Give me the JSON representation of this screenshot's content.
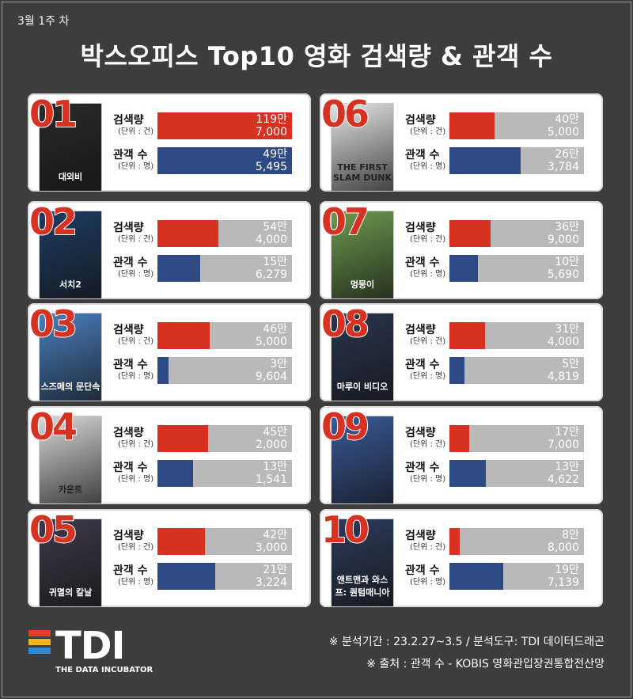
{
  "header": {
    "week": "3월 1주 차",
    "title": "박스오피스 Top10 영화 검색량 & 관객 수"
  },
  "labels": {
    "search_main": "검색량",
    "search_unit": "(단위 : 건)",
    "aud_main": "관객 수",
    "aud_unit": "(단위 : 명)"
  },
  "colors": {
    "search": "#d53222",
    "audience": "#2e4a84",
    "track": "#b9b9b9",
    "background": "#3d3d3d"
  },
  "chart_data": {
    "type": "bar",
    "categories": [
      "01",
      "02",
      "03",
      "04",
      "05",
      "06",
      "07",
      "08",
      "09",
      "10"
    ],
    "series": [
      {
        "name": "검색량",
        "unit": "건",
        "values": [
          1197000,
          544000,
          465000,
          452000,
          423000,
          405000,
          369000,
          314000,
          177000,
          88000
        ],
        "display": [
          [
            "119만",
            "7,000"
          ],
          [
            "54만",
            "4,000"
          ],
          [
            "46만",
            "5,000"
          ],
          [
            "45만",
            "2,000"
          ],
          [
            "42만",
            "3,000"
          ],
          [
            "40만",
            "5,000"
          ],
          [
            "36만",
            "9,000"
          ],
          [
            "31만",
            "4,000"
          ],
          [
            "17만",
            "7,000"
          ],
          [
            "8만",
            "8,000"
          ]
        ]
      },
      {
        "name": "관객 수",
        "unit": "명",
        "values": [
          495495,
          156279,
          39604,
          131541,
          213224,
          263784,
          105690,
          54819,
          134622,
          197139
        ],
        "display": [
          [
            "49만",
            "5,495"
          ],
          [
            "15만",
            "6,279"
          ],
          [
            "3만",
            "9,604"
          ],
          [
            "13만",
            "1,541"
          ],
          [
            "21만",
            "3,224"
          ],
          [
            "26만",
            "3,784"
          ],
          [
            "10만",
            "5,690"
          ],
          [
            "5만",
            "4,819"
          ],
          [
            "13만",
            "4,622"
          ],
          [
            "19만",
            "7,139"
          ]
        ]
      }
    ],
    "fill_fraction_search": [
      1.0,
      0.455,
      0.389,
      0.378,
      0.354,
      0.338,
      0.308,
      0.262,
      0.148,
      0.074
    ],
    "fill_fraction_audience": [
      1.0,
      0.315,
      0.08,
      0.265,
      0.43,
      0.532,
      0.213,
      0.111,
      0.272,
      0.398
    ]
  },
  "movies": [
    {
      "rank": "01",
      "poster_text": "대외비",
      "poster_color": "#2a2a2a"
    },
    {
      "rank": "02",
      "poster_text": "서치2",
      "poster_color": "#1e3c62"
    },
    {
      "rank": "03",
      "poster_text": "스즈메의 문단속",
      "poster_color": "#4a7fbf"
    },
    {
      "rank": "04",
      "poster_text": "카운트",
      "poster_color": "#d9d9d9"
    },
    {
      "rank": "05",
      "poster_text": "귀멸의 칼날",
      "poster_color": "#3e3a4a"
    },
    {
      "rank": "06",
      "poster_text": "THE FIRST SLAM DUNK",
      "poster_color": "#e6e6e6"
    },
    {
      "rank": "07",
      "poster_text": "멍뭉이",
      "poster_color": "#6d9b4f"
    },
    {
      "rank": "08",
      "poster_text": "마루이 비디오",
      "poster_color": "#2a3550"
    },
    {
      "rank": "09",
      "poster_text": "",
      "poster_color": "#3a5a9a"
    },
    {
      "rank": "10",
      "poster_text": "앤트맨과 와스프: 퀀텀매니아",
      "poster_color": "#2d3b5a"
    }
  ],
  "footer": {
    "logo": "TDI",
    "logo_sub": "THE DATA INCUBATOR",
    "note1": "※ 분석기간 : 23.2.27~3.5 / 분석도구: TDI 데이터드래곤",
    "note2": "※ 출처 : 관객 수 -  KOBIS 영화관입장권통합전산망"
  }
}
